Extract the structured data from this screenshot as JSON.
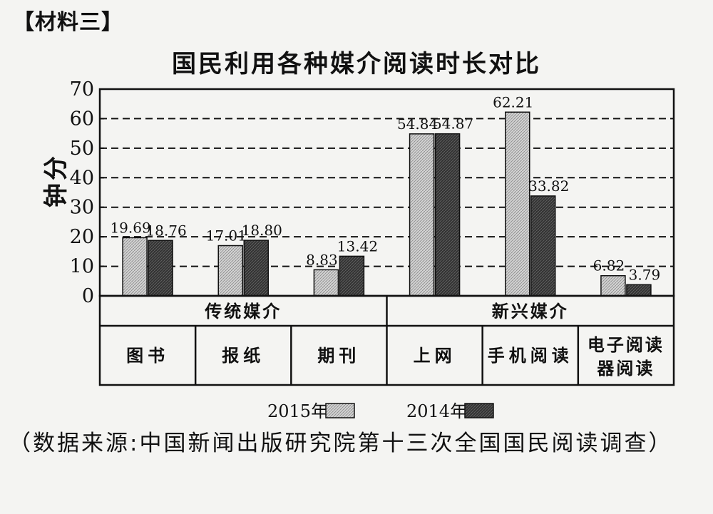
{
  "section_label": "【材料三】",
  "source_note": "（数据来源:中国新闻出版研究院第十三次全国国民阅读调查）",
  "chart_data": {
    "type": "bar",
    "title": "国民利用各种媒介阅读时长对比",
    "ylabel": "分钟",
    "xlabel": "",
    "ylim": [
      0,
      70
    ],
    "yticks": [
      0,
      10,
      20,
      30,
      40,
      50,
      60,
      70
    ],
    "grid": "dashed-horizontal",
    "categories": [
      "图书",
      "报纸",
      "期刊",
      "上网",
      "手机阅读",
      "电子阅读器阅读"
    ],
    "groups": [
      {
        "label": "传统媒介",
        "categories": [
          "图书",
          "报纸",
          "期刊"
        ]
      },
      {
        "label": "新兴媒介",
        "categories": [
          "上网",
          "手机阅读",
          "电子阅读器阅读"
        ]
      }
    ],
    "series": [
      {
        "name": "2015年",
        "values": [
          19.69,
          17.01,
          8.83,
          54.84,
          62.21,
          6.82
        ],
        "labels": [
          "19.69",
          "17.01",
          "8.83",
          "54.84",
          "62.21",
          "6.82"
        ],
        "color": "#c8c8c8"
      },
      {
        "name": "2014年",
        "values": [
          18.76,
          18.8,
          13.42,
          54.87,
          33.82,
          3.79
        ],
        "labels": [
          "18.76",
          "18.80",
          "13.42",
          "54.87",
          "33.82",
          "3.79"
        ],
        "color": "#3a3a3a"
      }
    ],
    "legend_position": "bottom"
  }
}
